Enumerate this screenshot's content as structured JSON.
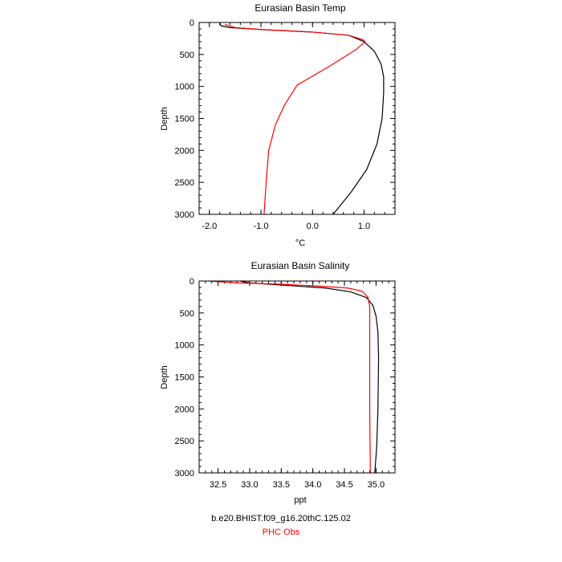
{
  "colors": {
    "model": "#000000",
    "obs": "#ff0000",
    "frame": "#000000"
  },
  "legend": {
    "model_label": "b.e20.BHIST.f09_g16.20thC.125.02",
    "obs_label": "PHC Obs"
  },
  "chart_data": [
    {
      "type": "line",
      "title": "Eurasian Basin Temp",
      "xlabel": "°C",
      "ylabel": "Depth",
      "xlim": [
        -2.2,
        1.6
      ],
      "ylim": [
        3000,
        0
      ],
      "y_reversed": true,
      "xticks": [
        -2.0,
        -1.0,
        0.0,
        1.0
      ],
      "xtick_labels": [
        "-2.0",
        "-1.0",
        "0.0",
        "1.0"
      ],
      "yticks": [
        0,
        500,
        1000,
        1500,
        2000,
        2500,
        3000
      ],
      "ytick_labels": [
        "0",
        "500",
        "1000",
        "1500",
        "2000",
        "2500",
        "3000"
      ],
      "grid": false,
      "series": [
        {
          "name": "b.e20.BHIST.f09_g16.20thC.125.02",
          "color": "#000000",
          "points": [
            [
              -1.8,
              0
            ],
            [
              -1.78,
              50
            ],
            [
              -1.6,
              80
            ],
            [
              -1.0,
              110
            ],
            [
              0.0,
              150
            ],
            [
              0.7,
              200
            ],
            [
              1.0,
              300
            ],
            [
              1.2,
              450
            ],
            [
              1.33,
              650
            ],
            [
              1.38,
              850
            ],
            [
              1.38,
              1100
            ],
            [
              1.35,
              1500
            ],
            [
              1.25,
              1900
            ],
            [
              1.05,
              2300
            ],
            [
              0.75,
              2650
            ],
            [
              0.4,
              3000
            ]
          ]
        },
        {
          "name": "PHC Obs",
          "color": "#ff0000",
          "points": [
            [
              -1.7,
              30
            ],
            [
              -1.5,
              80
            ],
            [
              -1.0,
              110
            ],
            [
              0.0,
              150
            ],
            [
              0.7,
              200
            ],
            [
              0.98,
              270
            ],
            [
              1.02,
              300
            ],
            [
              0.85,
              420
            ],
            [
              0.4,
              650
            ],
            [
              -0.3,
              980
            ],
            [
              -0.55,
              1300
            ],
            [
              -0.72,
              1600
            ],
            [
              -0.85,
              2000
            ],
            [
              -0.9,
              2500
            ],
            [
              -0.94,
              3000
            ]
          ]
        }
      ]
    },
    {
      "type": "line",
      "title": "Eurasian Basin Salinity",
      "xlabel": "ppt",
      "ylabel": "Depth",
      "xlim": [
        32.2,
        35.3
      ],
      "ylim": [
        3000,
        0
      ],
      "y_reversed": true,
      "xticks": [
        32.5,
        33.0,
        33.5,
        34.0,
        34.5,
        35.0
      ],
      "xtick_labels": [
        "32.5",
        "33.0",
        "33.5",
        "34.0",
        "34.5",
        "35.0"
      ],
      "yticks": [
        0,
        500,
        1000,
        1500,
        2000,
        2500,
        3000
      ],
      "ytick_labels": [
        "0",
        "500",
        "1000",
        "1500",
        "2000",
        "2500",
        "3000"
      ],
      "grid": false,
      "series": [
        {
          "name": "b.e20.BHIST.f09_g16.20thC.125.02",
          "color": "#000000",
          "points": [
            [
              32.85,
              0
            ],
            [
              33.0,
              30
            ],
            [
              33.6,
              70
            ],
            [
              34.2,
              110
            ],
            [
              34.6,
              170
            ],
            [
              34.85,
              260
            ],
            [
              34.95,
              380
            ],
            [
              35.0,
              550
            ],
            [
              35.03,
              800
            ],
            [
              35.04,
              1200
            ],
            [
              35.03,
              2000
            ],
            [
              35.01,
              2600
            ],
            [
              34.98,
              3000
            ]
          ]
        },
        {
          "name": "PHC Obs",
          "color": "#ff0000",
          "points": [
            [
              32.35,
              0
            ],
            [
              32.8,
              30
            ],
            [
              33.5,
              50
            ],
            [
              34.1,
              80
            ],
            [
              34.55,
              110
            ],
            [
              34.78,
              160
            ],
            [
              34.87,
              250
            ],
            [
              34.9,
              400
            ],
            [
              34.9,
              1000
            ],
            [
              34.9,
              2000
            ],
            [
              34.91,
              3000
            ]
          ]
        }
      ]
    }
  ]
}
